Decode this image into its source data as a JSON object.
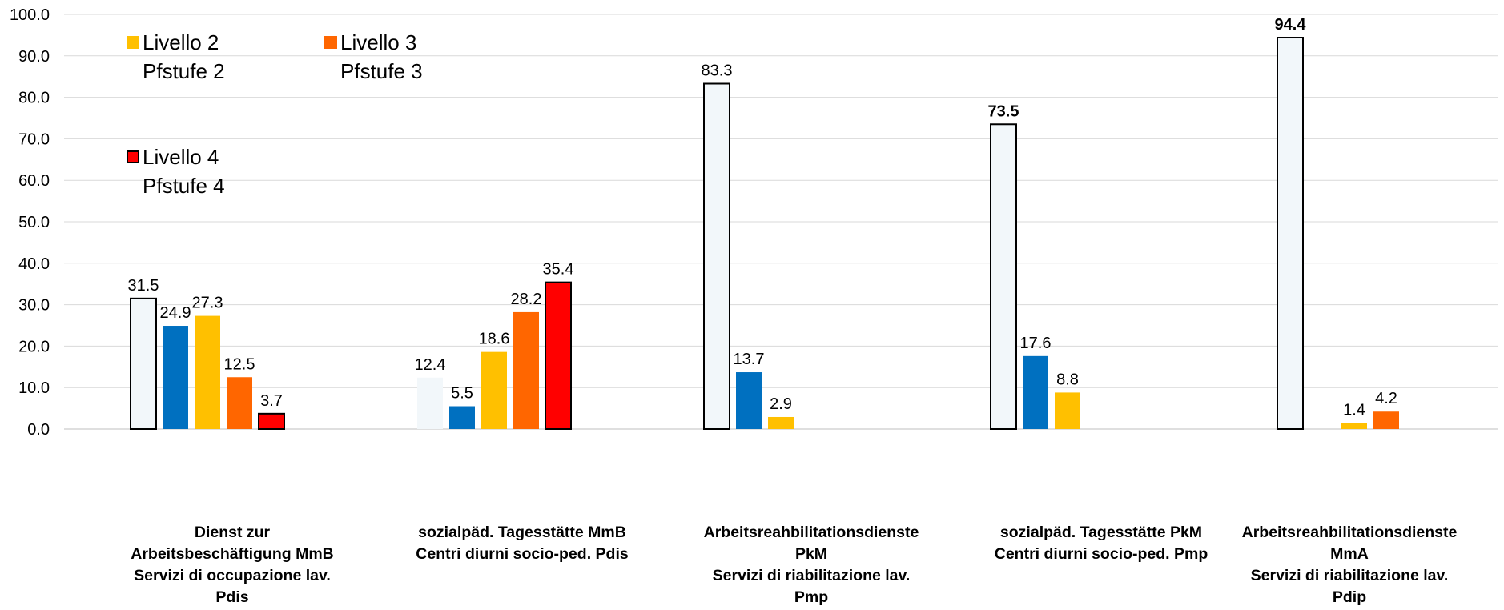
{
  "chart_data": {
    "type": "bar",
    "title": "",
    "xlabel": "",
    "ylabel": "",
    "ylim": [
      0,
      100
    ],
    "yticks": [
      "0.0",
      "10.0",
      "20.0",
      "30.0",
      "40.0",
      "50.0",
      "60.0",
      "70.0",
      "80.0",
      "90.0",
      "100.0"
    ],
    "grid": true,
    "legend_position": "top-left",
    "categories": [
      [
        "Dienst zur",
        "Arbeitsbeschäftigung MmB",
        "Servizi di occupazione lav.",
        "Pdis"
      ],
      [
        "sozialpäd. Tagesstätte MmB",
        "Centri diurni socio-ped. Pdis"
      ],
      [
        "Arbeitsreahbilitationsdienste",
        "PkM",
        "Servizi di riabilitazione lav.",
        "Pmp"
      ],
      [
        "sozialpäd. Tagesstätte PkM",
        "Centri diurni socio-ped. Pmp"
      ],
      [
        "Arbeitsreahbilitationsdienste",
        "MmA",
        "Servizi di riabilitazione lav.",
        "Pdip"
      ]
    ],
    "series": [
      {
        "color": "#f2f7fa",
        "border": "#000000",
        "values": [
          31.5,
          12.4,
          83.3,
          73.5,
          94.4
        ],
        "labels": [
          "31.5",
          "12.4",
          "83.3",
          "73.5",
          "94.4"
        ],
        "bold": [
          false,
          false,
          false,
          true,
          true
        ],
        "bordered": [
          true,
          false,
          true,
          true,
          true
        ]
      },
      {
        "color": "#0070c0",
        "border": "none",
        "values": [
          24.9,
          5.5,
          13.7,
          17.6,
          null
        ],
        "labels": [
          "24.9",
          "5.5",
          "13.7",
          "17.6",
          null
        ]
      },
      {
        "name": "Livello 2\nPfstufe 2",
        "color": "#ffc000",
        "border": "none",
        "values": [
          27.3,
          18.6,
          2.9,
          8.8,
          1.4
        ],
        "labels": [
          "27.3",
          "18.6",
          "2.9",
          "8.8",
          "1.4"
        ]
      },
      {
        "name": "Livello 3\nPfstufe 3",
        "color": "#ff6600",
        "border": "none",
        "values": [
          12.5,
          28.2,
          null,
          null,
          4.2
        ],
        "labels": [
          "12.5",
          "28.2",
          null,
          null,
          "4.2"
        ]
      },
      {
        "name": "Livello 4\nPfstufe 4",
        "color": "#ff0000",
        "border": "#000000",
        "values": [
          3.7,
          35.4,
          null,
          null,
          null
        ],
        "labels": [
          "3.7",
          "35.4",
          null,
          null,
          null
        ]
      }
    ]
  },
  "legend": [
    {
      "line1": "Livello 2",
      "line2": "Pfstufe 2",
      "color": "#ffc000",
      "border": "none"
    },
    {
      "line1": "Livello 3",
      "line2": "Pfstufe 3",
      "color": "#ff6600",
      "border": "none"
    },
    {
      "line1": "Livello 4",
      "line2": "Pfstufe 4",
      "color": "#ff0000",
      "border": "#000000"
    }
  ]
}
